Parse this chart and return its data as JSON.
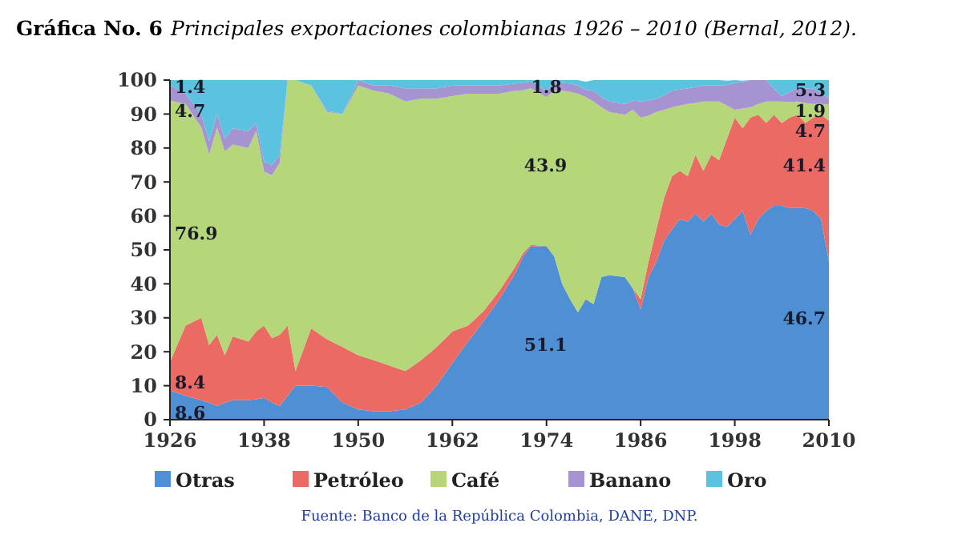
{
  "chart_data": {
    "type": "area",
    "stacked": true,
    "title": "Gráfica No. 6",
    "subtitle": "Principales exportaciones colombianas 1926 – 2010 (Bernal, 2012).",
    "x": [
      1926,
      1928,
      1930,
      1931,
      1932,
      1933,
      1934,
      1936,
      1937,
      1938,
      1939,
      1940,
      1941,
      1942,
      1944,
      1946,
      1948,
      1950,
      1952,
      1954,
      1956,
      1958,
      1960,
      1962,
      1964,
      1966,
      1968,
      1970,
      1971,
      1972,
      1974,
      1975,
      1976,
      1977,
      1978,
      1979,
      1980,
      1981,
      1982,
      1984,
      1985,
      1986,
      1987,
      1988,
      1989,
      1990,
      1991,
      1992,
      1993,
      1994,
      1995,
      1996,
      1997,
      1998,
      1999,
      2000,
      2001,
      2002,
      2003,
      2004,
      2005,
      2006,
      2007,
      2008,
      2009,
      2010
    ],
    "series": [
      {
        "name": "Otras",
        "color": "#4f8fd4",
        "values": [
          8.6,
          7,
          5.7,
          5,
          4,
          5,
          5.7,
          5.7,
          6,
          6.4,
          5,
          4,
          7,
          10,
          10,
          9.6,
          5,
          3,
          2.5,
          2.5,
          3,
          5,
          10,
          16.7,
          23,
          29,
          35.5,
          43,
          48,
          51,
          51.1,
          48,
          40,
          35.5,
          31.6,
          35.5,
          34,
          42,
          42.6,
          42,
          38.7,
          32.4,
          42,
          46.5,
          52.8,
          56,
          59,
          58.3,
          60.7,
          58.3,
          60.7,
          57.5,
          56.8,
          59,
          61.5,
          54.4,
          59,
          61.5,
          63,
          63,
          62.3,
          62.3,
          62.3,
          61.5,
          59,
          46.7
        ]
      },
      {
        "name": "Petróleo",
        "color": "#ec6a64",
        "values": [
          8.4,
          20.7,
          24.3,
          17,
          21,
          14,
          18.8,
          17.3,
          20,
          21.3,
          19,
          21,
          20.7,
          4.3,
          16.9,
          14.1,
          16.4,
          16,
          15,
          13.4,
          11.3,
          12.5,
          11.4,
          9.3,
          4.7,
          3,
          2.5,
          2,
          1,
          0.5,
          0,
          0,
          0,
          0,
          0,
          0,
          0,
          0,
          0,
          0,
          0,
          3.1,
          4.5,
          9.5,
          12.6,
          15.7,
          14.3,
          13.4,
          17.3,
          15,
          17.3,
          18.9,
          25.9,
          30,
          24.3,
          34.6,
          30.8,
          25.9,
          26.8,
          24.4,
          26.7,
          27.5,
          25.1,
          27.5,
          30.8,
          41.4
        ]
      },
      {
        "name": "Café",
        "color": "#b5d77a",
        "values": [
          76.9,
          65.3,
          56,
          56,
          61,
          60,
          56.5,
          57,
          59,
          45.3,
          48,
          50.6,
          72.3,
          85.7,
          71.5,
          66.9,
          68.6,
          79.4,
          79.4,
          80.1,
          79.4,
          77,
          73.1,
          69.3,
          68.3,
          64,
          58,
          51.9,
          48,
          46.1,
          43.9,
          49,
          56.9,
          61,
          64.4,
          59.5,
          59.7,
          50,
          48,
          47.8,
          52.6,
          53.5,
          43,
          34.6,
          25.9,
          20.3,
          19.2,
          21.3,
          15.3,
          20.4,
          15.7,
          17.3,
          9.8,
          2.3,
          5.8,
          3,
          3.2,
          6.3,
          3.9,
          6.3,
          4.5,
          3.9,
          5.8,
          4,
          3.2,
          4.7
        ]
      },
      {
        "name": "Banano",
        "color": "#a694d0",
        "values": [
          4.7,
          3,
          3.8,
          4,
          4,
          3.7,
          4.8,
          5,
          2.4,
          3,
          3,
          2.4,
          0,
          0,
          0,
          0.4,
          0,
          1.6,
          1.5,
          2.4,
          3.9,
          3.1,
          3.1,
          3.1,
          2.4,
          2.4,
          2.4,
          2.1,
          2.2,
          2,
          1.8,
          2.2,
          2.3,
          2.5,
          2.4,
          2.1,
          3.2,
          3,
          3.1,
          3.2,
          2.7,
          4.7,
          4.5,
          3.9,
          4.2,
          4.9,
          4.7,
          4.6,
          4.7,
          4.7,
          4.7,
          4.7,
          6.1,
          7.9,
          7.8,
          8,
          7,
          6.3,
          3.8,
          1.6,
          3,
          3.9,
          4.4,
          4.6,
          3,
          1.9
        ]
      },
      {
        "name": "Oro",
        "color": "#5bc3e0",
        "values": [
          1.4,
          4,
          10.2,
          18,
          10,
          17.3,
          14.2,
          15,
          12.6,
          24,
          25,
          22,
          0,
          0,
          1.6,
          9,
          10,
          0,
          1.6,
          1.6,
          2.4,
          2.4,
          2.4,
          1.6,
          1.6,
          1.6,
          1.6,
          1,
          0.8,
          0.4,
          3.2,
          0.8,
          0.8,
          1,
          1.6,
          2.4,
          3.1,
          5,
          6.3,
          7,
          6,
          6.3,
          6,
          5.5,
          4.5,
          3.1,
          2.8,
          2.4,
          2,
          1.6,
          1.6,
          1.6,
          1.2,
          0.8,
          0.4,
          0,
          0,
          0,
          2.5,
          4.7,
          3.5,
          2.4,
          2.4,
          2.4,
          4,
          5.3
        ]
      }
    ],
    "xlim": [
      1926,
      2010
    ],
    "xticks": [
      1926,
      1938,
      1950,
      1962,
      1974,
      1986,
      1998,
      2010
    ],
    "ylim": [
      0,
      100
    ],
    "yticks": [
      0,
      10,
      20,
      30,
      40,
      50,
      60,
      70,
      80,
      90,
      100
    ],
    "grid": false,
    "legend": "bottom",
    "annotations": [
      {
        "text": "1.4",
        "x": 1926,
        "y": 98
      },
      {
        "text": "4.7",
        "x": 1926,
        "y": 91
      },
      {
        "text": "76.9",
        "x": 1926,
        "y": 55
      },
      {
        "text": "8.4",
        "x": 1926,
        "y": 11
      },
      {
        "text": "8.6",
        "x": 1926,
        "y": 2
      },
      {
        "text": "1.8",
        "x": 1974,
        "y": 98
      },
      "43.9",
      "51.1",
      {
        "text": "5.3",
        "x": 2010,
        "y": 97
      },
      {
        "text": "1.9",
        "x": 2010,
        "y": 91
      },
      {
        "text": "4.7",
        "x": 2010,
        "y": 85
      },
      {
        "text": "41.4",
        "x": 2010,
        "y": 75
      },
      {
        "text": "46.7",
        "x": 2010,
        "y": 30
      },
      "Fuente: Banco de la República Colombia, DANE, DNP."
    ]
  }
}
